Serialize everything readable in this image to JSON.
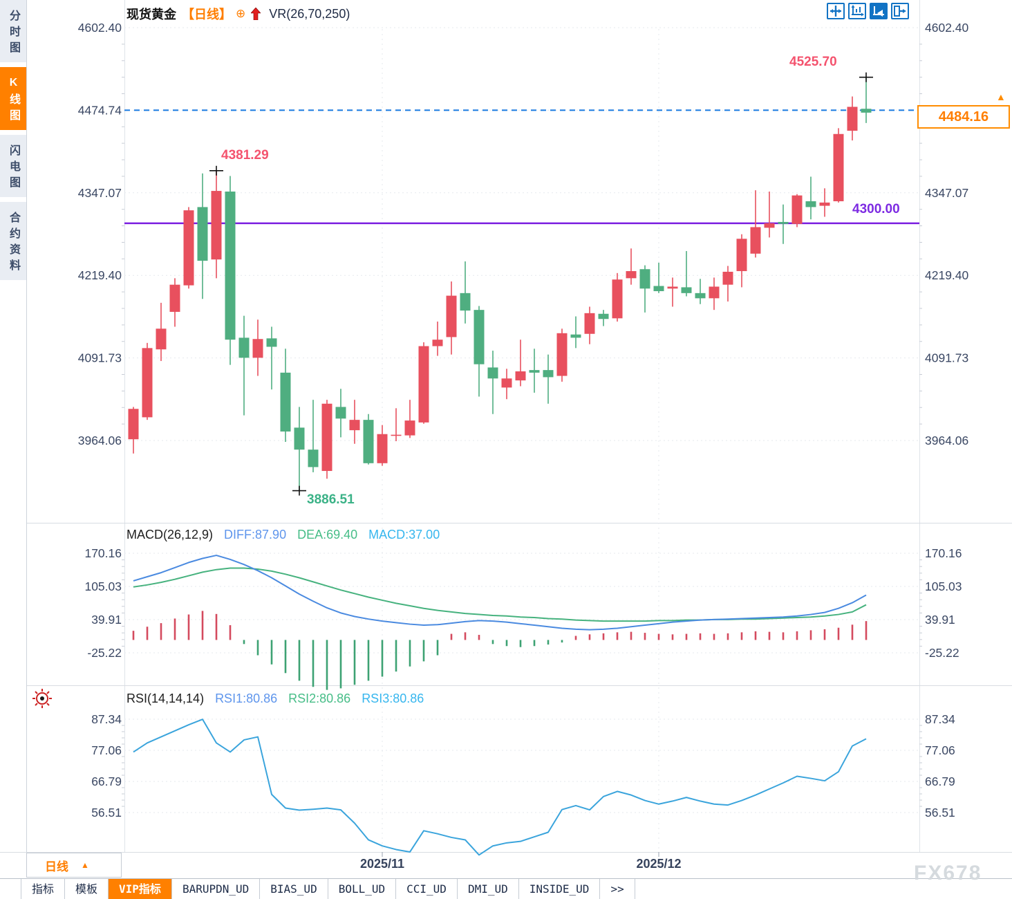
{
  "header": {
    "symbol": "现货黄金",
    "period_tag": "【日线】",
    "plus_icon": "⊕",
    "indicator_label": "VR(26,70,250)"
  },
  "toolbar": {
    "icons": [
      "crosshair-move-icon",
      "axis-range-icon",
      "auto-scale-icon",
      "collapse-right-icon"
    ]
  },
  "sidebar": {
    "items": [
      {
        "label": "分时图",
        "active": false
      },
      {
        "label": "K线图",
        "active": true
      },
      {
        "label": "闪电图",
        "active": false
      },
      {
        "label": "合约资料",
        "active": false
      }
    ]
  },
  "macd_header": {
    "title": "MACD(26,12,9)",
    "diff_label": "DIFF:87.90",
    "dea_label": "DEA:69.40",
    "macd_label": "MACD:37.00"
  },
  "rsi_header": {
    "title": "RSI(14,14,14)",
    "rsi1_label": "RSI1:80.86",
    "rsi2_label": "RSI2:80.86",
    "rsi3_label": "RSI3:80.86"
  },
  "annotations": {
    "peak1": "4381.29",
    "peak2": "4525.70",
    "low": "3886.51",
    "hline_label": "4300.00",
    "last_price": "4484.16",
    "arrow": "▲"
  },
  "xaxis": {
    "period_selector": "日线",
    "caret": "▲",
    "dates": [
      "2025/11",
      "2025/12"
    ]
  },
  "bottom_tabs": [
    {
      "label": "指标",
      "active": false
    },
    {
      "label": "模板",
      "active": false
    },
    {
      "label": "VIP指标",
      "active": true
    },
    {
      "label": "BARUPDN_UD",
      "active": false
    },
    {
      "label": "BIAS_UD",
      "active": false
    },
    {
      "label": "BOLL_UD",
      "active": false
    },
    {
      "label": "CCI_UD",
      "active": false
    },
    {
      "label": "DMI_UD",
      "active": false
    },
    {
      "label": "INSIDE_UD",
      "active": false
    },
    {
      "label": ">>",
      "active": false
    }
  ],
  "watermark": "FX678",
  "colors": {
    "accent_orange": "#ff7e00",
    "up_candle": "#e8505e",
    "down_candle": "#4fae80",
    "diff_line": "#4a8ae0",
    "dea_line": "#46b27e",
    "hist_pos": "#d44a5e",
    "hist_neg": "#3da273",
    "rsi_line": "#3aa4dc",
    "dashed_price_line": "#1779e0",
    "purple_line": "#7a1ee0",
    "axis_text": "#3a4763",
    "grid": "#e6e9ee",
    "frame": "#dfe3e9",
    "minor_tick": "#c7ccd5"
  },
  "chart_data": {
    "type": "candlestick+macd+rsi",
    "title": "现货黄金 日线 (Spot Gold Daily)",
    "price_axis_ticks": [
      4602.4,
      4474.74,
      4347.07,
      4219.4,
      4091.73,
      3964.06
    ],
    "hline": 4300.0,
    "dashed_line_price": 4474.74,
    "last_price": 4484.16,
    "candles": [
      [
        3966,
        4016,
        3944,
        4013
      ],
      [
        4000,
        4115,
        3996,
        4107
      ],
      [
        4105,
        4177,
        4087,
        4137
      ],
      [
        4163,
        4215,
        4140,
        4205
      ],
      [
        4204,
        4325,
        4199,
        4320
      ],
      [
        4325,
        4377,
        4183,
        4242
      ],
      [
        4244,
        4381.29,
        4215,
        4350
      ],
      [
        4349,
        4373,
        4081,
        4120
      ],
      [
        4123,
        4157,
        4003,
        4092
      ],
      [
        4092,
        4151,
        4064,
        4121
      ],
      [
        4122,
        4140,
        4043,
        4109
      ],
      [
        4069,
        4106,
        3962,
        3978
      ],
      [
        3984,
        4016,
        3886.51,
        3950
      ],
      [
        3950,
        4027,
        3915,
        3923
      ],
      [
        3917,
        4027,
        3905,
        4021
      ],
      [
        4016,
        4044,
        3969,
        3998
      ],
      [
        3980,
        4027,
        3959,
        3996
      ],
      [
        3996,
        4005,
        3927,
        3929
      ],
      [
        3929,
        3988,
        3925,
        3974
      ],
      [
        3972,
        4014,
        3963,
        3973
      ],
      [
        3972,
        4027,
        3968,
        3995
      ],
      [
        3992,
        4116,
        3990,
        4110
      ],
      [
        4110,
        4148,
        4095,
        4120
      ],
      [
        4124,
        4210,
        4097,
        4188
      ],
      [
        4192,
        4241,
        4145,
        4165
      ],
      [
        4166,
        4172,
        4032,
        4082
      ],
      [
        4077,
        4103,
        4005,
        4060
      ],
      [
        4046,
        4075,
        4028,
        4060
      ],
      [
        4057,
        4120,
        4048,
        4071
      ],
      [
        4073,
        4106,
        4038,
        4069
      ],
      [
        4073,
        4097,
        4021,
        4062
      ],
      [
        4064,
        4137,
        4055,
        4130
      ],
      [
        4128,
        4156,
        4107,
        4123
      ],
      [
        4129,
        4171,
        4113,
        4161
      ],
      [
        4160,
        4166,
        4141,
        4152
      ],
      [
        4153,
        4223,
        4148,
        4213
      ],
      [
        4215,
        4261,
        4205,
        4226
      ],
      [
        4229,
        4235,
        4162,
        4199
      ],
      [
        4203,
        4239,
        4192,
        4195
      ],
      [
        4199,
        4216,
        4171,
        4202
      ],
      [
        4201,
        4257,
        4187,
        4192
      ],
      [
        4192,
        4214,
        4175,
        4184
      ],
      [
        4184,
        4216,
        4166,
        4202
      ],
      [
        4205,
        4234,
        4179,
        4225
      ],
      [
        4226,
        4283,
        4201,
        4276
      ],
      [
        4253,
        4351,
        4247,
        4294
      ],
      [
        4293,
        4349,
        4278,
        4300
      ],
      [
        4302,
        4329,
        4268,
        4299
      ],
      [
        4299,
        4345,
        4294,
        4343
      ],
      [
        4334,
        4372,
        4306,
        4325
      ],
      [
        4327,
        4354,
        4310,
        4332
      ],
      [
        4334,
        4447,
        4332,
        4438
      ],
      [
        4443,
        4496,
        4428,
        4480
      ],
      [
        4477,
        4525.7,
        4455,
        4471
      ]
    ],
    "markers": [
      {
        "index": 6,
        "price": 4381.29
      },
      {
        "index": 12,
        "price": 3886.51
      },
      {
        "index": 53,
        "price": 4525.7
      }
    ],
    "x_date_ticks": [
      {
        "label": "2025/11",
        "index": 18
      },
      {
        "label": "2025/12",
        "index": 38
      }
    ],
    "macd": {
      "axis_ticks": [
        170.16,
        105.03,
        39.91,
        -25.22
      ],
      "diff": [
        116,
        124,
        132,
        142,
        152,
        160,
        166,
        158,
        148,
        136,
        122,
        106,
        90,
        76,
        63,
        53,
        46,
        41,
        37,
        34,
        31,
        29,
        30,
        33,
        36,
        38,
        37,
        35,
        32,
        29,
        26,
        23,
        21,
        20,
        21,
        23,
        26,
        29,
        32,
        35,
        37,
        39,
        40,
        41,
        42,
        43,
        44,
        45,
        47,
        50,
        54,
        62,
        73,
        88
      ],
      "dea": [
        104,
        108,
        113,
        119,
        126,
        133,
        138,
        141,
        141,
        139,
        135,
        129,
        122,
        114,
        106,
        98,
        91,
        84,
        78,
        72,
        67,
        62,
        58,
        55,
        52,
        50,
        48,
        47,
        45,
        44,
        42,
        41,
        39,
        38,
        37,
        37,
        37,
        37,
        38,
        38,
        39,
        39,
        40,
        40,
        41,
        41,
        42,
        43,
        44,
        45,
        47,
        50,
        55,
        69
      ],
      "hist": [
        18,
        26,
        33,
        42,
        50,
        57,
        51,
        29,
        -8,
        -30,
        -48,
        -65,
        -80,
        -92,
        -98,
        -95,
        -88,
        -80,
        -72,
        -62,
        -52,
        -42,
        -30,
        12,
        15,
        10,
        -8,
        -12,
        -14,
        -12,
        -9,
        -5,
        8,
        11,
        13,
        15,
        16,
        14,
        12,
        11,
        12,
        13,
        12,
        13,
        15,
        17,
        16,
        15,
        17,
        19,
        21,
        24,
        30,
        37
      ]
    },
    "rsi": {
      "axis_ticks": [
        87.34,
        77.06,
        66.79,
        56.51
      ],
      "values": [
        76.5,
        79.5,
        81.5,
        83.5,
        85.5,
        87.3,
        79.5,
        76.5,
        80.5,
        81.5,
        62.5,
        58,
        57.3,
        57.6,
        58,
        57.4,
        53,
        47.5,
        45.5,
        44.3,
        43.5,
        50.5,
        49.5,
        48.3,
        47.5,
        42.5,
        45.5,
        46.5,
        47,
        48.5,
        50,
        57.5,
        58.8,
        57.4,
        61.8,
        63.5,
        62.3,
        60.5,
        59.3,
        60.3,
        61.5,
        60.3,
        59.3,
        59,
        60.5,
        62.3,
        64.3,
        66.3,
        68.5,
        67.8,
        67,
        70,
        78.5,
        80.86
      ]
    }
  }
}
